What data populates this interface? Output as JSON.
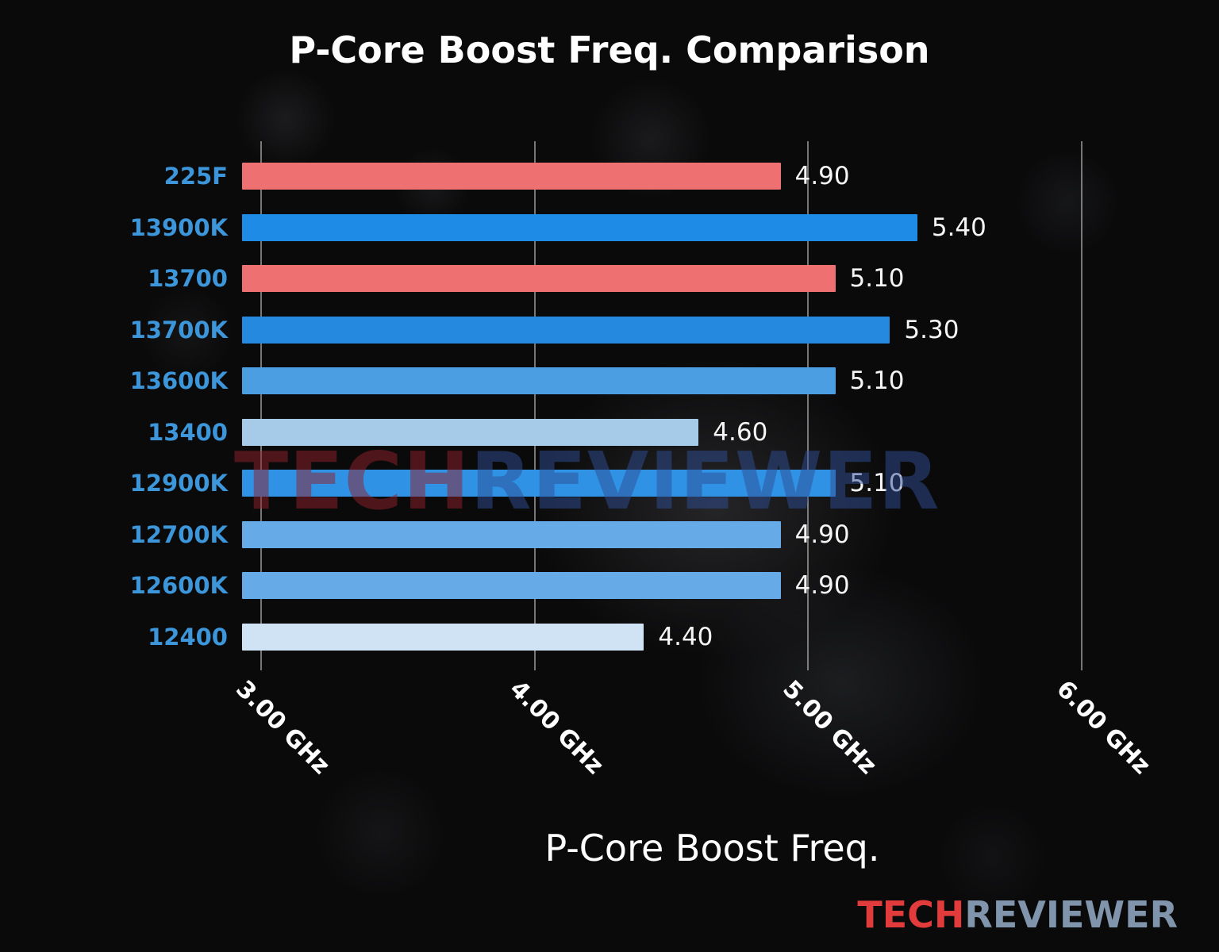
{
  "title": "P-Core Boost Freq. Comparison",
  "watermark": {
    "part1": "TECH",
    "part2": "REVIEWER"
  },
  "logo": {
    "part1": "TECH",
    "part2": "REVIEWER"
  },
  "chart_data": {
    "type": "bar",
    "orientation": "horizontal",
    "title": "P-Core Boost Freq. Comparison",
    "xlabel": "P-Core Boost Freq.",
    "categories": [
      "225F",
      "13900K",
      "13700",
      "13700K",
      "13600K",
      "13400",
      "12900K",
      "12700K",
      "12600K",
      "12400"
    ],
    "values": [
      4.9,
      5.4,
      5.1,
      5.3,
      5.1,
      4.6,
      5.1,
      4.9,
      4.9,
      4.4
    ],
    "value_labels": [
      "4.90",
      "5.40",
      "5.10",
      "5.30",
      "5.10",
      "4.60",
      "5.10",
      "4.90",
      "4.90",
      "4.40"
    ],
    "bar_colors": [
      "#ee7070",
      "#1e8be7",
      "#ee7070",
      "#2589e0",
      "#4c9ee3",
      "#a5cbe9",
      "#2f92e5",
      "#66abe7",
      "#66abe7",
      "#cfe3f5"
    ],
    "category_label_color": "#3c96d9",
    "gridline_color": "rgba(210,210,210,0.55)",
    "axis": {
      "min": 2.93,
      "max": 6.37,
      "ticks": [
        3,
        4,
        5,
        6
      ],
      "tick_labels": [
        "3.00 GHz",
        "4.00 GHz",
        "5.00 GHz",
        "6.00 GHz"
      ]
    },
    "legend": null,
    "grid": "vertical"
  }
}
